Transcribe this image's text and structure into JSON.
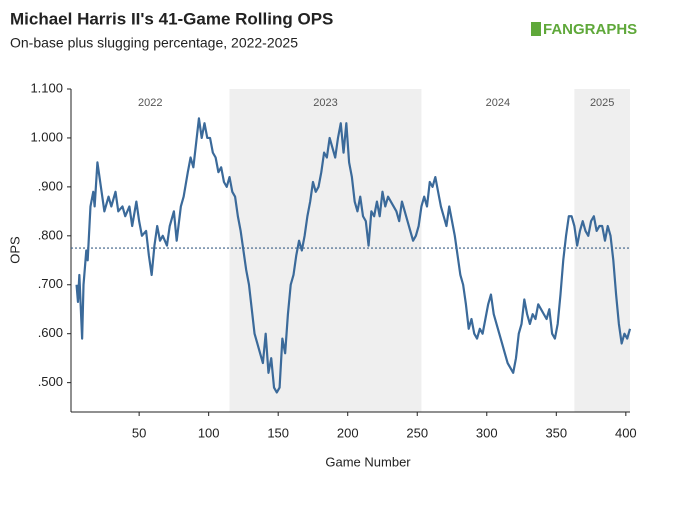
{
  "chart_data": {
    "type": "line",
    "title": "Michael Harris II's 41-Game Rolling OPS",
    "subtitle": "On-base plus slugging percentage, 2022-2025",
    "logo": "FANGRAPHS",
    "x_label": "Game Number",
    "y_label": "OPS",
    "xlim": [
      1,
      403
    ],
    "ylim": [
      0.44,
      1.1
    ],
    "xticks": [
      50,
      100,
      150,
      200,
      250,
      300,
      350,
      400
    ],
    "yticks": [
      {
        "value": 0.5,
        "label": ".500"
      },
      {
        "value": 0.6,
        "label": ".600"
      },
      {
        "value": 0.7,
        "label": ".700"
      },
      {
        "value": 0.8,
        "label": ".800"
      },
      {
        "value": 0.9,
        "label": ".900"
      },
      {
        "value": 1.0,
        "label": "1.000"
      },
      {
        "value": 1.1,
        "label": "1.100"
      }
    ],
    "reference_line": 0.775,
    "periods": [
      {
        "label": "2022",
        "start": 1,
        "end": 115,
        "shaded": false
      },
      {
        "label": "2023",
        "start": 115,
        "end": 253,
        "shaded": true
      },
      {
        "label": "2024",
        "start": 253,
        "end": 363,
        "shaded": false
      },
      {
        "label": "2025",
        "start": 363,
        "end": 403,
        "shaded": true
      }
    ],
    "series": [
      {
        "name": "OPS",
        "color": "#3b6a9a",
        "x": [
          5,
          6,
          7,
          9,
          10,
          12,
          13,
          15,
          17,
          18,
          20,
          22,
          25,
          28,
          30,
          33,
          35,
          38,
          40,
          43,
          45,
          48,
          50,
          52,
          55,
          57,
          59,
          61,
          63,
          65,
          67,
          70,
          72,
          75,
          77,
          80,
          82,
          85,
          87,
          89,
          91,
          93,
          95,
          97,
          99,
          101,
          103,
          105,
          107,
          109,
          111,
          113,
          115,
          117,
          119,
          121,
          123,
          125,
          127,
          129,
          131,
          133,
          135,
          137,
          139,
          141,
          143,
          145,
          147,
          149,
          151,
          153,
          155,
          157,
          159,
          161,
          163,
          165,
          167,
          169,
          171,
          173,
          175,
          177,
          179,
          181,
          183,
          185,
          187,
          189,
          191,
          193,
          195,
          197,
          199,
          201,
          203,
          205,
          207,
          209,
          211,
          213,
          215,
          217,
          219,
          221,
          223,
          225,
          227,
          229,
          231,
          233,
          235,
          237,
          239,
          241,
          243,
          245,
          247,
          249,
          251,
          253,
          255,
          257,
          259,
          261,
          263,
          265,
          267,
          269,
          271,
          273,
          275,
          277,
          279,
          281,
          283,
          285,
          287,
          289,
          291,
          293,
          295,
          297,
          299,
          301,
          303,
          305,
          307,
          309,
          311,
          313,
          315,
          317,
          319,
          321,
          323,
          325,
          327,
          329,
          331,
          333,
          335,
          337,
          339,
          341,
          343,
          345,
          347,
          349,
          351,
          353,
          355,
          357,
          359,
          361,
          363,
          365,
          367,
          369,
          371,
          373,
          375,
          377,
          379,
          381,
          383,
          385,
          387,
          389,
          391,
          393,
          395,
          397,
          399,
          401,
          403
        ],
        "values": [
          0.7,
          0.665,
          0.72,
          0.59,
          0.7,
          0.77,
          0.75,
          0.86,
          0.89,
          0.86,
          0.95,
          0.91,
          0.85,
          0.88,
          0.86,
          0.89,
          0.85,
          0.86,
          0.84,
          0.86,
          0.82,
          0.87,
          0.83,
          0.8,
          0.81,
          0.76,
          0.72,
          0.78,
          0.82,
          0.79,
          0.8,
          0.78,
          0.82,
          0.85,
          0.79,
          0.86,
          0.88,
          0.93,
          0.96,
          0.94,
          0.99,
          1.04,
          1.0,
          1.03,
          1.0,
          1.0,
          0.97,
          0.96,
          0.93,
          0.94,
          0.91,
          0.9,
          0.92,
          0.89,
          0.88,
          0.84,
          0.81,
          0.77,
          0.73,
          0.7,
          0.65,
          0.6,
          0.58,
          0.56,
          0.54,
          0.6,
          0.52,
          0.55,
          0.49,
          0.48,
          0.49,
          0.59,
          0.56,
          0.64,
          0.7,
          0.72,
          0.76,
          0.79,
          0.77,
          0.8,
          0.84,
          0.87,
          0.91,
          0.89,
          0.9,
          0.93,
          0.97,
          0.96,
          1.0,
          0.98,
          0.96,
          1.0,
          1.03,
          0.97,
          1.03,
          0.95,
          0.92,
          0.87,
          0.85,
          0.88,
          0.84,
          0.83,
          0.78,
          0.85,
          0.84,
          0.87,
          0.84,
          0.89,
          0.86,
          0.88,
          0.87,
          0.86,
          0.85,
          0.83,
          0.87,
          0.85,
          0.83,
          0.81,
          0.79,
          0.8,
          0.82,
          0.86,
          0.88,
          0.86,
          0.91,
          0.9,
          0.92,
          0.89,
          0.86,
          0.84,
          0.82,
          0.86,
          0.83,
          0.8,
          0.76,
          0.72,
          0.7,
          0.66,
          0.61,
          0.63,
          0.6,
          0.59,
          0.61,
          0.6,
          0.63,
          0.66,
          0.68,
          0.64,
          0.62,
          0.6,
          0.58,
          0.56,
          0.54,
          0.53,
          0.52,
          0.55,
          0.6,
          0.62,
          0.67,
          0.64,
          0.62,
          0.64,
          0.63,
          0.66,
          0.65,
          0.64,
          0.63,
          0.65,
          0.6,
          0.59,
          0.62,
          0.68,
          0.75,
          0.8,
          0.84,
          0.84,
          0.82,
          0.78,
          0.81,
          0.83,
          0.81,
          0.8,
          0.83,
          0.84,
          0.81,
          0.82,
          0.82,
          0.79,
          0.82,
          0.8,
          0.75,
          0.68,
          0.62,
          0.58,
          0.6,
          0.59,
          0.61
        ]
      }
    ]
  }
}
